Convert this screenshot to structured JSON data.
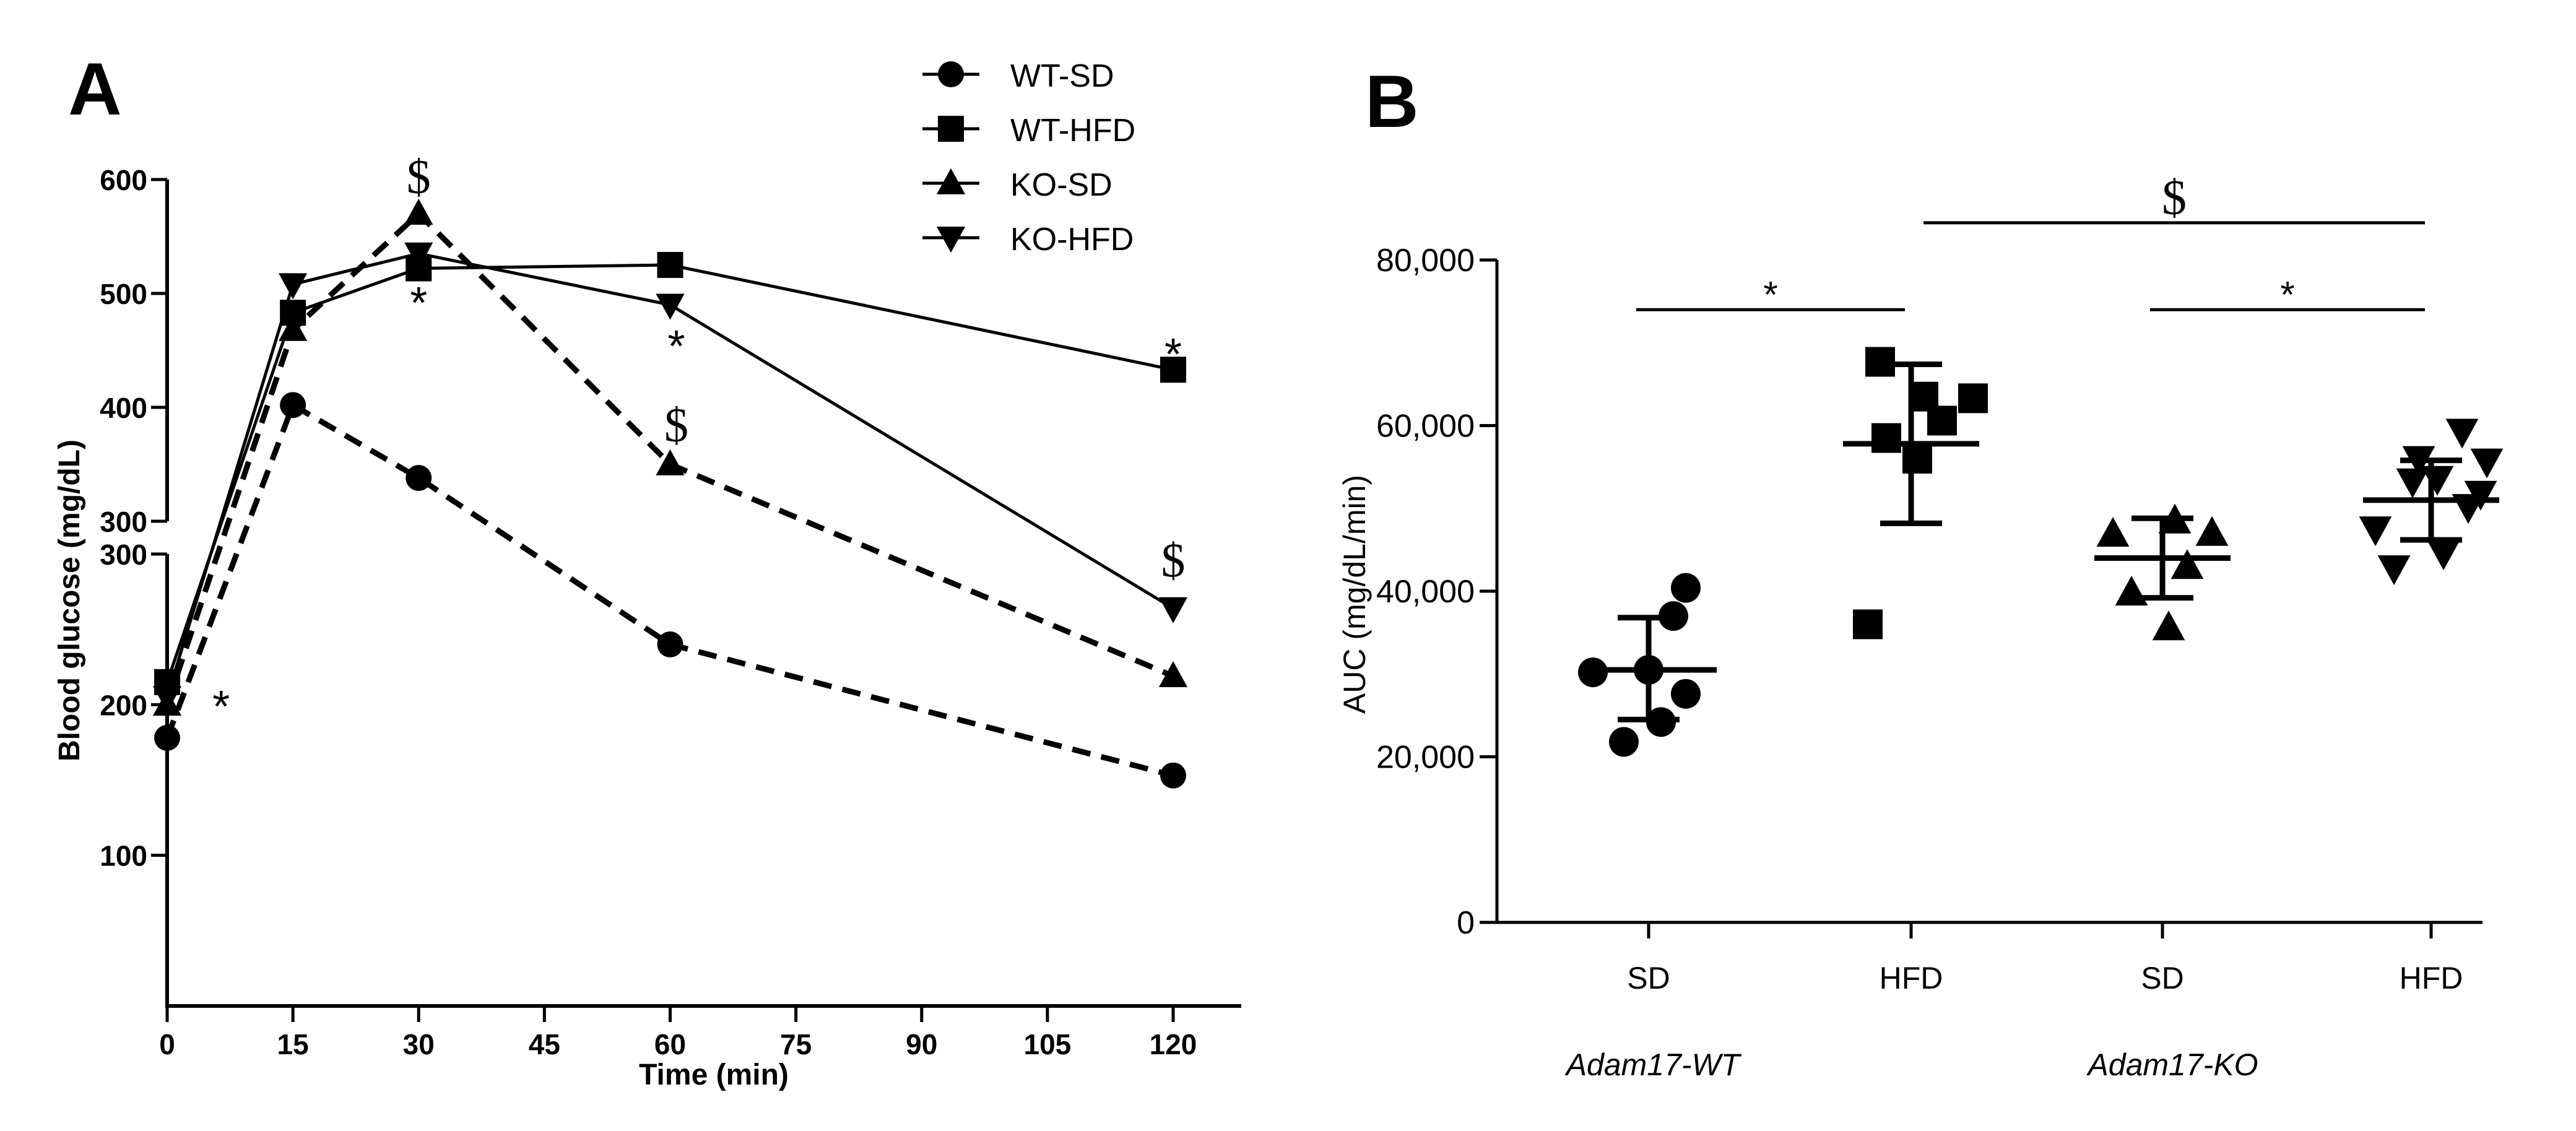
{
  "chart_data": [
    {
      "panel_label": "A",
      "type": "line",
      "xlabel": "Time (min)",
      "ylabel": "Blood glucose (mg/dL)",
      "x": [
        0,
        15,
        30,
        60,
        120
      ],
      "x_ticks": [
        "0",
        "15",
        "30",
        "45",
        "60",
        "75",
        "90",
        "105",
        "120"
      ],
      "y_ticks_upper": [
        "300",
        "400",
        "500",
        "600"
      ],
      "y_ticks_lower": [
        "100",
        "200",
        "300"
      ],
      "axis_break": {
        "lower_range": [
          0,
          300
        ],
        "upper_range": [
          300,
          600
        ]
      },
      "series": [
        {
          "name": "WT-SD",
          "marker": "circle",
          "line": "dashed",
          "values": [
            178,
            402,
            338,
            240,
            153
          ]
        },
        {
          "name": "WT-HFD",
          "marker": "square",
          "line": "solid",
          "values": [
            215,
            483,
            522,
            525,
            433
          ]
        },
        {
          "name": "KO-SD",
          "marker": "triangle-up",
          "line": "dashed",
          "values": [
            200,
            468,
            570,
            350,
            219
          ]
        },
        {
          "name": "KO-HFD",
          "marker": "triangle-down",
          "line": "solid",
          "values": [
            205,
            508,
            535,
            490,
            264
          ]
        }
      ],
      "annotations": [
        {
          "text": "*",
          "x": 2,
          "y": 205,
          "anchor": "right"
        },
        {
          "text": "*",
          "x": 30,
          "y": 500,
          "anchor": "below"
        },
        {
          "text": "*",
          "x": 60,
          "y": 462,
          "anchor": "below"
        },
        {
          "text": "*",
          "x": 120,
          "y": 455,
          "anchor": "above"
        },
        {
          "text": "$",
          "x": 30,
          "y": 588,
          "anchor": "above"
        },
        {
          "text": "$",
          "x": 60,
          "y": 370,
          "anchor": "above"
        },
        {
          "text": "$",
          "x": 120,
          "y": 285,
          "anchor": "above"
        }
      ]
    },
    {
      "panel_label": "B",
      "type": "scatter",
      "ylabel": "AUC (mg/dL/min)",
      "ylim": [
        0,
        80000
      ],
      "y_ticks": [
        "0",
        "20,000",
        "40,000",
        "60,000",
        "80,000"
      ],
      "categories": [
        "SD",
        "HFD",
        "SD",
        "HFD"
      ],
      "groups": [
        "Adam17-WT",
        "Adam17-KO"
      ],
      "series": [
        {
          "name": "Adam17-WT SD",
          "marker": "circle",
          "mean": 30500,
          "sd_low": 24500,
          "sd_high": 36800,
          "points": [
            21800,
            24200,
            27600,
            30200,
            30500,
            37000,
            40400
          ]
        },
        {
          "name": "Adam17-WT HFD",
          "marker": "square",
          "mean": 57800,
          "sd_low": 48200,
          "sd_high": 67400,
          "points": [
            36000,
            56000,
            58500,
            60600,
            63300,
            63500,
            67700
          ]
        },
        {
          "name": "Adam17-KO SD",
          "marker": "triangle-up",
          "mean": 44000,
          "sd_low": 39200,
          "sd_high": 48800,
          "points": [
            35600,
            39800,
            43000,
            46900,
            47000,
            48500
          ]
        },
        {
          "name": "Adam17-KO HFD",
          "marker": "triangle-down",
          "mean": 51000,
          "sd_low": 46200,
          "sd_high": 55800,
          "points": [
            42800,
            44600,
            47500,
            50200,
            51800,
            53300,
            53600,
            55700,
            56000,
            59300
          ]
        }
      ],
      "comparisons": [
        {
          "text": "*",
          "from": 0,
          "to": 1,
          "y": 74000
        },
        {
          "text": "*",
          "from": 2,
          "to": 3,
          "y": 74000
        },
        {
          "text": "$",
          "from": 1,
          "to": 3,
          "y": 84500
        }
      ]
    }
  ]
}
